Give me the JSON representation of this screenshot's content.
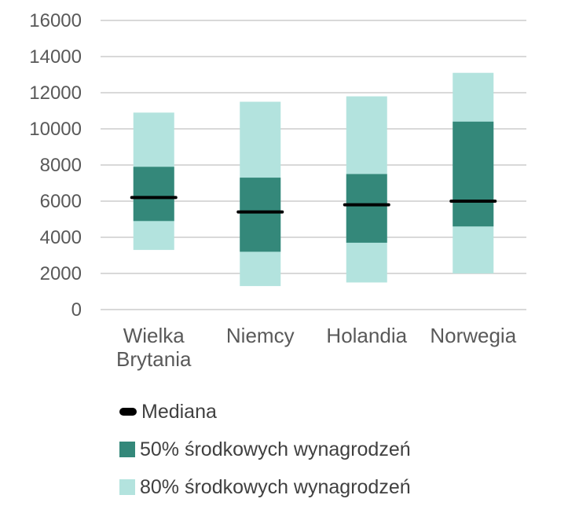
{
  "chart_data": {
    "type": "bar",
    "subtype": "floating-range",
    "categories": [
      "Wielka Brytania",
      "Niemcy",
      "Holandia",
      "Norwegia"
    ],
    "category_lines": [
      [
        "Wielka",
        "Brytania"
      ],
      [
        "Niemcy"
      ],
      [
        "Holandia"
      ],
      [
        "Norwegia"
      ]
    ],
    "series": [
      {
        "name": "80% środkowych wynagrodzeń",
        "low": [
          3300,
          1300,
          1500,
          2000
        ],
        "high": [
          10900,
          11500,
          11800,
          13100
        ]
      },
      {
        "name": "50% środkowych wynagrodzeń",
        "low": [
          4900,
          3200,
          3700,
          4600
        ],
        "high": [
          7900,
          7300,
          7500,
          10400
        ]
      },
      {
        "name": "Mediana",
        "values": [
          6200,
          5400,
          5800,
          6000
        ]
      }
    ],
    "yticks": [
      0,
      2000,
      4000,
      6000,
      8000,
      10000,
      12000,
      14000,
      16000
    ],
    "ylim": [
      0,
      16000
    ],
    "grid": true,
    "legend_position": "bottom",
    "colors": {
      "outer": "#b3e3de",
      "inner": "#34887a",
      "median": "#000000",
      "grid": "#d9d9d9"
    }
  },
  "legend": {
    "items": [
      {
        "label": "Mediana",
        "color": "#000000",
        "kind": "median"
      },
      {
        "label": "50% środkowych wynagrodzeń",
        "color": "#34887a",
        "kind": "box"
      },
      {
        "label": "80% środkowych wynagrodzeń",
        "color": "#b3e3de",
        "kind": "box"
      }
    ]
  }
}
